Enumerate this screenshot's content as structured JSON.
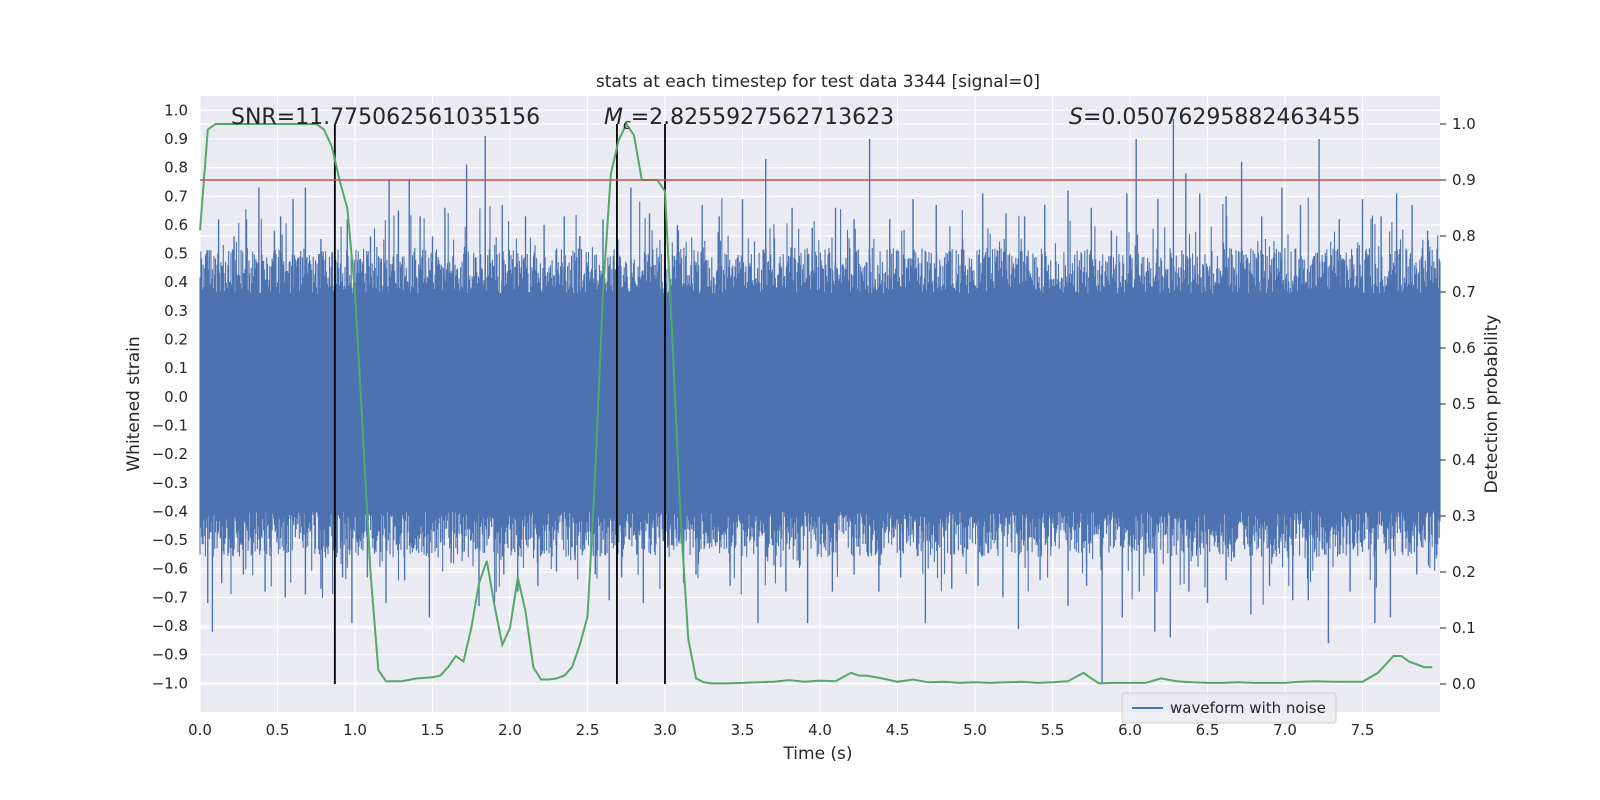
{
  "chart_data": {
    "type": "line",
    "title": "stats at each timestep for test data 3344 [signal=0]",
    "xlabel": "Time (s)",
    "ylabel_left": "Whitened strain",
    "ylabel_right": "Detection probability",
    "xlim": [
      0,
      8.0
    ],
    "ylim_left": [
      -1.1,
      1.05
    ],
    "ylim_right": [
      -0.05,
      1.05
    ],
    "x_ticks": [
      0.0,
      0.5,
      1.0,
      1.5,
      2.0,
      2.5,
      3.0,
      3.5,
      4.0,
      4.5,
      5.0,
      5.5,
      6.0,
      6.5,
      7.0,
      7.5
    ],
    "x_tick_labels": [
      "0.0",
      "0.5",
      "1.0",
      "1.5",
      "2.0",
      "2.5",
      "3.0",
      "3.5",
      "4.0",
      "4.5",
      "5.0",
      "5.5",
      "6.0",
      "6.5",
      "7.0",
      "7.5"
    ],
    "y_left_ticks": [
      1.0,
      0.9,
      0.8,
      0.7,
      0.6,
      0.5,
      0.4,
      0.3,
      0.2,
      0.1,
      0.0,
      -0.1,
      -0.2,
      -0.3,
      -0.4,
      -0.5,
      -0.6,
      -0.7,
      -0.8,
      -0.9,
      -1.0
    ],
    "y_left_tick_labels": [
      "1.0",
      "0.9",
      "0.8",
      "0.7",
      "0.6",
      "0.5",
      "0.4",
      "0.3",
      "0.2",
      "0.1",
      "0.0",
      "−0.1",
      "−0.2",
      "−0.3",
      "−0.4",
      "−0.5",
      "−0.6",
      "−0.7",
      "−0.8",
      "−0.9",
      "−1.0"
    ],
    "y_right_ticks": [
      1.0,
      0.9,
      0.8,
      0.7,
      0.6,
      0.5,
      0.4,
      0.3,
      0.2,
      0.1,
      0.0
    ],
    "y_right_tick_labels": [
      "1.0",
      "0.9",
      "0.8",
      "0.7",
      "0.6",
      "0.5",
      "0.4",
      "0.3",
      "0.2",
      "0.1",
      "0.0"
    ],
    "annotations": {
      "snr": "SNR=11.775062561035156",
      "mc_symbol": "M",
      "mc_subscript": "c",
      "mc_value": "=2.8255927562713623",
      "s_symbol": "S",
      "s_value": "=0.05076295882463455"
    },
    "legend": {
      "label": "waveform with noise",
      "location": "lower-right"
    },
    "threshold": {
      "value": 0.9,
      "axis": "right",
      "color": "#c44e52"
    },
    "vertical_lines": [
      0.87,
      2.69,
      3.0
    ],
    "waveform": {
      "name": "waveform with noise",
      "color": "#4c72b0",
      "t_start": 0.0,
      "t_end": 8.0,
      "core_amplitude": 0.36,
      "spikes_pos": [
        [
          0.04,
          0.5
        ],
        [
          0.12,
          0.62
        ],
        [
          0.22,
          0.56
        ],
        [
          0.3,
          0.62
        ],
        [
          0.38,
          0.73
        ],
        [
          0.48,
          0.58
        ],
        [
          0.52,
          0.63
        ],
        [
          0.6,
          0.69
        ],
        [
          0.68,
          0.73
        ],
        [
          0.78,
          0.55
        ],
        [
          0.95,
          0.62
        ],
        [
          1.1,
          0.56
        ],
        [
          1.22,
          0.76
        ],
        [
          1.28,
          0.65
        ],
        [
          1.35,
          0.76
        ],
        [
          1.42,
          0.63
        ],
        [
          1.5,
          0.56
        ],
        [
          1.58,
          0.66
        ],
        [
          1.72,
          0.81
        ],
        [
          1.84,
          0.91
        ],
        [
          1.95,
          0.67
        ],
        [
          2.1,
          0.63
        ],
        [
          2.22,
          0.6
        ],
        [
          2.35,
          0.63
        ],
        [
          2.45,
          0.56
        ],
        [
          2.6,
          0.62
        ],
        [
          2.78,
          0.73
        ],
        [
          2.9,
          0.64
        ],
        [
          3.08,
          0.6
        ],
        [
          3.24,
          0.67
        ],
        [
          3.35,
          0.63
        ],
        [
          3.5,
          0.69
        ],
        [
          3.65,
          0.83
        ],
        [
          3.82,
          0.66
        ],
        [
          3.95,
          0.59
        ],
        [
          4.1,
          0.66
        ],
        [
          4.22,
          0.62
        ],
        [
          4.32,
          0.9
        ],
        [
          4.45,
          0.62
        ],
        [
          4.6,
          0.69
        ],
        [
          4.75,
          0.67
        ],
        [
          4.92,
          0.55
        ],
        [
          5.05,
          0.71
        ],
        [
          5.2,
          0.64
        ],
        [
          5.32,
          0.63
        ],
        [
          5.45,
          0.67
        ],
        [
          5.6,
          0.72
        ],
        [
          5.75,
          0.66
        ],
        [
          5.88,
          0.58
        ],
        [
          5.98,
          0.71
        ],
        [
          6.04,
          0.9
        ],
        [
          6.18,
          0.69
        ],
        [
          6.28,
          0.97
        ],
        [
          6.36,
          0.78
        ],
        [
          6.45,
          0.71
        ],
        [
          6.62,
          0.7
        ],
        [
          6.72,
          0.82
        ],
        [
          6.85,
          0.63
        ],
        [
          6.98,
          0.73
        ],
        [
          7.1,
          0.67
        ],
        [
          7.22,
          0.9
        ],
        [
          7.35,
          0.62
        ],
        [
          7.5,
          0.69
        ],
        [
          7.62,
          0.63
        ],
        [
          7.72,
          0.71
        ],
        [
          7.82,
          0.67
        ],
        [
          7.92,
          0.58
        ]
      ],
      "spikes_neg": [
        [
          0.05,
          -0.72
        ],
        [
          0.08,
          -0.82
        ],
        [
          0.14,
          -0.65
        ],
        [
          0.28,
          -0.62
        ],
        [
          0.42,
          -0.68
        ],
        [
          0.55,
          -0.7
        ],
        [
          0.68,
          -0.69
        ],
        [
          0.78,
          -0.67
        ],
        [
          0.92,
          -0.63
        ],
        [
          0.98,
          -0.79
        ],
        [
          1.08,
          -0.63
        ],
        [
          1.2,
          -0.72
        ],
        [
          1.32,
          -0.64
        ],
        [
          1.48,
          -0.77
        ],
        [
          1.62,
          -0.58
        ],
        [
          1.8,
          -0.73
        ],
        [
          1.96,
          -0.62
        ],
        [
          2.05,
          -0.68
        ],
        [
          2.18,
          -0.66
        ],
        [
          2.3,
          -0.61
        ],
        [
          2.42,
          -0.57
        ],
        [
          2.55,
          -0.62
        ],
        [
          2.64,
          -0.71
        ],
        [
          2.72,
          -0.63
        ],
        [
          2.86,
          -0.72
        ],
        [
          3.12,
          -0.65
        ],
        [
          3.2,
          -0.62
        ],
        [
          3.42,
          -0.66
        ],
        [
          3.6,
          -0.79
        ],
        [
          3.78,
          -0.68
        ],
        [
          3.92,
          -0.79
        ],
        [
          4.08,
          -0.68
        ],
        [
          4.22,
          -0.62
        ],
        [
          4.38,
          -0.68
        ],
        [
          4.52,
          -0.63
        ],
        [
          4.68,
          -0.79
        ],
        [
          4.85,
          -0.67
        ],
        [
          5.02,
          -0.66
        ],
        [
          5.18,
          -0.7
        ],
        [
          5.28,
          -0.81
        ],
        [
          5.42,
          -0.64
        ],
        [
          5.6,
          -0.73
        ],
        [
          5.72,
          -0.66
        ],
        [
          5.82,
          -1.0
        ],
        [
          5.95,
          -0.77
        ],
        [
          6.06,
          -0.68
        ],
        [
          6.16,
          -0.82
        ],
        [
          6.26,
          -0.84
        ],
        [
          6.38,
          -0.68
        ],
        [
          6.5,
          -0.72
        ],
        [
          6.62,
          -0.64
        ],
        [
          6.78,
          -0.76
        ],
        [
          6.9,
          -0.66
        ],
        [
          7.05,
          -0.71
        ],
        [
          7.15,
          -0.71
        ],
        [
          7.28,
          -0.86
        ],
        [
          7.42,
          -0.68
        ],
        [
          7.58,
          -0.79
        ],
        [
          7.68,
          -0.77
        ],
        [
          7.85,
          -0.62
        ]
      ]
    },
    "probability_series": {
      "name": "detection probability",
      "color": "#55a868",
      "x": [
        0.0,
        0.05,
        0.1,
        0.2,
        0.3,
        0.4,
        0.5,
        0.6,
        0.7,
        0.75,
        0.8,
        0.85,
        0.9,
        0.95,
        1.0,
        1.05,
        1.1,
        1.15,
        1.2,
        1.3,
        1.4,
        1.5,
        1.55,
        1.6,
        1.65,
        1.7,
        1.75,
        1.8,
        1.85,
        1.9,
        1.95,
        2.0,
        2.05,
        2.1,
        2.15,
        2.2,
        2.25,
        2.3,
        2.35,
        2.4,
        2.45,
        2.5,
        2.55,
        2.6,
        2.65,
        2.7,
        2.75,
        2.8,
        2.85,
        2.9,
        2.95,
        3.0,
        3.05,
        3.1,
        3.15,
        3.2,
        3.25,
        3.3,
        3.4,
        3.5,
        3.6,
        3.7,
        3.8,
        3.9,
        4.0,
        4.1,
        4.2,
        4.25,
        4.3,
        4.4,
        4.5,
        4.6,
        4.7,
        4.8,
        4.9,
        5.0,
        5.1,
        5.2,
        5.3,
        5.4,
        5.5,
        5.6,
        5.7,
        5.75,
        5.8,
        5.9,
        6.0,
        6.1,
        6.2,
        6.3,
        6.4,
        6.5,
        6.6,
        6.7,
        6.8,
        6.9,
        7.0,
        7.1,
        7.2,
        7.3,
        7.4,
        7.5,
        7.6,
        7.7,
        7.75,
        7.8,
        7.9,
        7.95
      ],
      "y": [
        0.81,
        0.99,
        1.0,
        1.0,
        1.0,
        1.0,
        1.0,
        1.0,
        1.0,
        1.0,
        0.99,
        0.96,
        0.9,
        0.85,
        0.7,
        0.45,
        0.2,
        0.025,
        0.005,
        0.005,
        0.01,
        0.012,
        0.015,
        0.03,
        0.05,
        0.04,
        0.1,
        0.18,
        0.22,
        0.14,
        0.07,
        0.1,
        0.19,
        0.13,
        0.03,
        0.008,
        0.008,
        0.01,
        0.015,
        0.03,
        0.07,
        0.12,
        0.38,
        0.7,
        0.91,
        0.97,
        1.0,
        0.98,
        0.9,
        0.9,
        0.9,
        0.88,
        0.6,
        0.3,
        0.08,
        0.01,
        0.003,
        0.001,
        0.001,
        0.002,
        0.003,
        0.004,
        0.007,
        0.004,
        0.006,
        0.005,
        0.02,
        0.015,
        0.015,
        0.01,
        0.004,
        0.008,
        0.003,
        0.004,
        0.002,
        0.003,
        0.002,
        0.003,
        0.004,
        0.002,
        0.003,
        0.005,
        0.02,
        0.01,
        0.001,
        0.002,
        0.002,
        0.002,
        0.01,
        0.005,
        0.003,
        0.002,
        0.002,
        0.003,
        0.002,
        0.002,
        0.002,
        0.004,
        0.005,
        0.004,
        0.004,
        0.004,
        0.02,
        0.05,
        0.05,
        0.04,
        0.03,
        0.03
      ]
    }
  }
}
